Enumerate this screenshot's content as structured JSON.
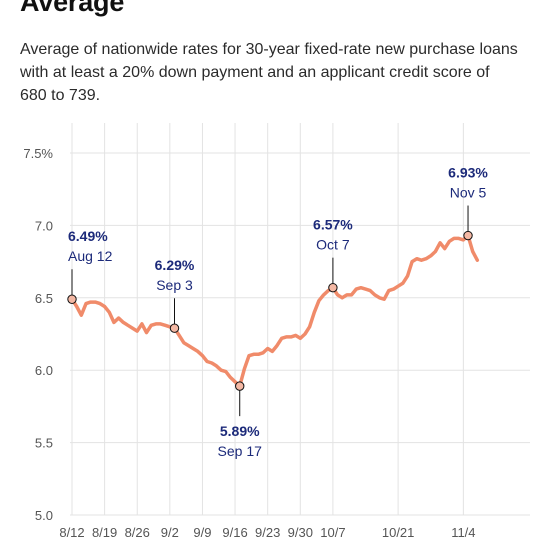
{
  "header": {
    "title": "Average",
    "subtitle": "Average of nationwide rates for 30-year fixed-rate new purchase loans with at least a 20% down payment and an applicant credit score of 680 to 739."
  },
  "colors": {
    "line": "#f08b6a",
    "annotation": "#1c2a7a",
    "grid": "#e3e3e3",
    "marker_fill": "#f4b8a4"
  },
  "chart_data": {
    "type": "line",
    "title": "",
    "xlabel": "",
    "ylabel": "",
    "ylim": [
      5.0,
      7.5
    ],
    "grid": true,
    "xlim": [
      "2024-08-12",
      "2024-11-08"
    ],
    "y_ticks": [
      {
        "value": 7.5,
        "label": "7.5%"
      },
      {
        "value": 7.0,
        "label": "7.0"
      },
      {
        "value": 6.5,
        "label": "6.5"
      },
      {
        "value": 6.0,
        "label": "6.0"
      },
      {
        "value": 5.5,
        "label": "5.5"
      },
      {
        "value": 5.0,
        "label": "5.0"
      }
    ],
    "x_ticks": [
      {
        "date": "2024-08-12",
        "label": "8/12"
      },
      {
        "date": "2024-08-19",
        "label": "8/19"
      },
      {
        "date": "2024-08-26",
        "label": "8/26"
      },
      {
        "date": "2024-09-02",
        "label": "9/2"
      },
      {
        "date": "2024-09-09",
        "label": "9/9"
      },
      {
        "date": "2024-09-16",
        "label": "9/16"
      },
      {
        "date": "2024-09-23",
        "label": "9/23"
      },
      {
        "date": "2024-09-30",
        "label": "9/30"
      },
      {
        "date": "2024-10-07",
        "label": "10/7"
      },
      {
        "date": "2024-10-21",
        "label": "10/21"
      },
      {
        "date": "2024-11-04",
        "label": "11/4"
      }
    ],
    "series": [
      {
        "points": [
          [
            "2024-08-12",
            6.49
          ],
          [
            "2024-08-13",
            6.44
          ],
          [
            "2024-08-14",
            6.38
          ],
          [
            "2024-08-15",
            6.46
          ],
          [
            "2024-08-16",
            6.47
          ],
          [
            "2024-08-17",
            6.47
          ],
          [
            "2024-08-18",
            6.46
          ],
          [
            "2024-08-19",
            6.44
          ],
          [
            "2024-08-20",
            6.4
          ],
          [
            "2024-08-21",
            6.33
          ],
          [
            "2024-08-22",
            6.36
          ],
          [
            "2024-08-23",
            6.33
          ],
          [
            "2024-08-24",
            6.31
          ],
          [
            "2024-08-25",
            6.29
          ],
          [
            "2024-08-26",
            6.27
          ],
          [
            "2024-08-27",
            6.32
          ],
          [
            "2024-08-28",
            6.26
          ],
          [
            "2024-08-29",
            6.31
          ],
          [
            "2024-08-30",
            6.32
          ],
          [
            "2024-08-31",
            6.32
          ],
          [
            "2024-09-01",
            6.31
          ],
          [
            "2024-09-02",
            6.3
          ],
          [
            "2024-09-03",
            6.29
          ],
          [
            "2024-09-04",
            6.24
          ],
          [
            "2024-09-05",
            6.19
          ],
          [
            "2024-09-06",
            6.17
          ],
          [
            "2024-09-07",
            6.15
          ],
          [
            "2024-09-08",
            6.13
          ],
          [
            "2024-09-09",
            6.1
          ],
          [
            "2024-09-10",
            6.06
          ],
          [
            "2024-09-11",
            6.05
          ],
          [
            "2024-09-12",
            6.03
          ],
          [
            "2024-09-13",
            6.0
          ],
          [
            "2024-09-14",
            5.99
          ],
          [
            "2024-09-15",
            5.95
          ],
          [
            "2024-09-16",
            5.92
          ],
          [
            "2024-09-17",
            5.89
          ],
          [
            "2024-09-18",
            6.01
          ],
          [
            "2024-09-19",
            6.1
          ],
          [
            "2024-09-20",
            6.11
          ],
          [
            "2024-09-21",
            6.11
          ],
          [
            "2024-09-22",
            6.12
          ],
          [
            "2024-09-23",
            6.15
          ],
          [
            "2024-09-24",
            6.13
          ],
          [
            "2024-09-25",
            6.17
          ],
          [
            "2024-09-26",
            6.22
          ],
          [
            "2024-09-27",
            6.23
          ],
          [
            "2024-09-28",
            6.23
          ],
          [
            "2024-09-29",
            6.24
          ],
          [
            "2024-09-30",
            6.22
          ],
          [
            "2024-10-01",
            6.25
          ],
          [
            "2024-10-02",
            6.3
          ],
          [
            "2024-10-03",
            6.4
          ],
          [
            "2024-10-04",
            6.48
          ],
          [
            "2024-10-05",
            6.52
          ],
          [
            "2024-10-06",
            6.55
          ],
          [
            "2024-10-07",
            6.57
          ],
          [
            "2024-10-08",
            6.52
          ],
          [
            "2024-10-09",
            6.5
          ],
          [
            "2024-10-10",
            6.52
          ],
          [
            "2024-10-11",
            6.52
          ],
          [
            "2024-10-12",
            6.56
          ],
          [
            "2024-10-13",
            6.57
          ],
          [
            "2024-10-14",
            6.56
          ],
          [
            "2024-10-15",
            6.55
          ],
          [
            "2024-10-16",
            6.52
          ],
          [
            "2024-10-17",
            6.5
          ],
          [
            "2024-10-18",
            6.49
          ],
          [
            "2024-10-19",
            6.55
          ],
          [
            "2024-10-20",
            6.56
          ],
          [
            "2024-10-21",
            6.58
          ],
          [
            "2024-10-22",
            6.6
          ],
          [
            "2024-10-23",
            6.65
          ],
          [
            "2024-10-24",
            6.75
          ],
          [
            "2024-10-25",
            6.77
          ],
          [
            "2024-10-26",
            6.76
          ],
          [
            "2024-10-27",
            6.77
          ],
          [
            "2024-10-28",
            6.79
          ],
          [
            "2024-10-29",
            6.82
          ],
          [
            "2024-10-30",
            6.88
          ],
          [
            "2024-10-31",
            6.84
          ],
          [
            "2024-11-01",
            6.89
          ],
          [
            "2024-11-02",
            6.91
          ],
          [
            "2024-11-03",
            6.91
          ],
          [
            "2024-11-04",
            6.9
          ],
          [
            "2024-11-05",
            6.93
          ],
          [
            "2024-11-06",
            6.82
          ],
          [
            "2024-11-07",
            6.76
          ]
        ]
      }
    ],
    "annotations": [
      {
        "date": "2024-08-12",
        "value": 6.49,
        "value_label": "6.49%",
        "date_label": "Aug 12",
        "side": "above",
        "align": "start"
      },
      {
        "date": "2024-09-03",
        "value": 6.29,
        "value_label": "6.29%",
        "date_label": "Sep 3",
        "side": "above",
        "align": "middle"
      },
      {
        "date": "2024-09-17",
        "value": 5.89,
        "value_label": "5.89%",
        "date_label": "Sep 17",
        "side": "below",
        "align": "middle"
      },
      {
        "date": "2024-10-07",
        "value": 6.57,
        "value_label": "6.57%",
        "date_label": "Oct 7",
        "side": "above",
        "align": "middle"
      },
      {
        "date": "2024-11-05",
        "value": 6.93,
        "value_label": "6.93%",
        "date_label": "Nov 5",
        "side": "above",
        "align": "middle"
      }
    ]
  }
}
